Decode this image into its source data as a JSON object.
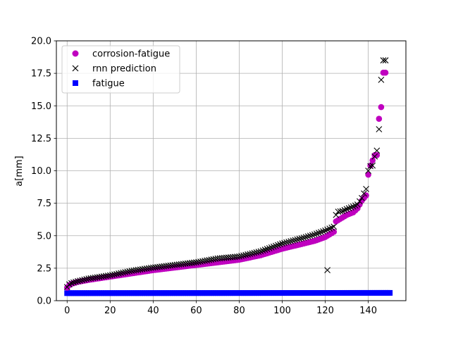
{
  "chart_data": {
    "type": "scatter",
    "title": "",
    "xlabel": "",
    "ylabel": "a[mm]",
    "xlim": [
      -5,
      157.5
    ],
    "ylim": [
      0,
      20
    ],
    "xticks": [
      0,
      20,
      40,
      60,
      80,
      100,
      120,
      140
    ],
    "yticks": [
      0.0,
      2.5,
      5.0,
      7.5,
      10.0,
      12.5,
      15.0,
      17.5,
      20.0
    ],
    "xtick_labels": [
      "0",
      "20",
      "40",
      "60",
      "80",
      "100",
      "120",
      "140"
    ],
    "ytick_labels": [
      "0.0",
      "2.5",
      "5.0",
      "7.5",
      "10.0",
      "12.5",
      "15.0",
      "17.5",
      "20.0"
    ],
    "grid": true,
    "legend_position": "top-left",
    "legend": [
      {
        "label": "corrosion-fatigue",
        "marker": "circle",
        "color": "#bf00bf"
      },
      {
        "label": "rnn prediction",
        "marker": "x",
        "color": "#000000"
      },
      {
        "label": "fatigue",
        "marker": "square",
        "color": "#0000ff"
      }
    ],
    "series": [
      {
        "name": "corrosion-fatigue",
        "marker": "circle",
        "color": "#bf00bf",
        "trend": {
          "x": [
            0,
            1,
            2,
            5,
            10,
            20,
            30,
            40,
            50,
            60,
            70,
            80,
            90,
            100,
            110,
            115,
            120,
            124,
            125,
            128,
            130,
            133,
            135,
            137,
            139,
            140,
            141,
            142,
            143,
            144,
            145,
            146,
            147,
            148
          ],
          "y": [
            1.0,
            1.2,
            1.3,
            1.45,
            1.6,
            1.85,
            2.1,
            2.35,
            2.55,
            2.75,
            2.95,
            3.15,
            3.5,
            4.0,
            4.4,
            4.6,
            4.9,
            5.3,
            6.1,
            6.4,
            6.6,
            6.8,
            7.1,
            7.7,
            8.1,
            9.7,
            10.4,
            10.8,
            11.2,
            11.2,
            14.0,
            14.9,
            17.55,
            17.55
          ]
        },
        "x_range": [
          0,
          148
        ]
      },
      {
        "name": "rnn prediction",
        "marker": "x",
        "color": "#000000",
        "trend": {
          "x": [
            0,
            1,
            2,
            5,
            10,
            20,
            30,
            40,
            50,
            60,
            70,
            80,
            90,
            100,
            110,
            115,
            120,
            124,
            125,
            126,
            128,
            130,
            133,
            135,
            137,
            139,
            140,
            141,
            142,
            143,
            144,
            145,
            146,
            147,
            148
          ],
          "y": [
            1.05,
            1.25,
            1.35,
            1.5,
            1.7,
            1.95,
            2.3,
            2.55,
            2.75,
            2.95,
            3.25,
            3.4,
            3.8,
            4.4,
            4.85,
            5.1,
            5.4,
            5.7,
            6.6,
            6.85,
            6.9,
            7.05,
            7.25,
            7.4,
            7.9,
            8.6,
            10.0,
            10.35,
            10.4,
            11.1,
            11.55,
            13.2,
            17.0,
            18.5,
            18.5
          ]
        },
        "outliers": [
          {
            "x": 121,
            "y": 2.35
          }
        ],
        "x_range": [
          0,
          148
        ]
      },
      {
        "name": "fatigue",
        "marker": "square",
        "color": "#0000ff",
        "trend": {
          "x": [
            0,
            150
          ],
          "y": [
            0.58,
            0.6
          ]
        },
        "x_range": [
          0,
          150
        ]
      }
    ]
  }
}
